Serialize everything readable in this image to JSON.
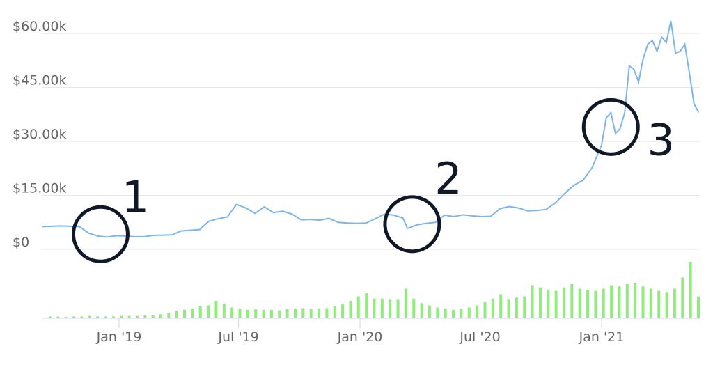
{
  "chart_data": {
    "type": "line",
    "title": "",
    "xlabel": "",
    "ylabel": "",
    "ylim": [
      0,
      60000
    ],
    "y_ticks": [
      {
        "value": 0,
        "label": "$0"
      },
      {
        "value": 15000,
        "label": "$15.00k"
      },
      {
        "value": 30000,
        "label": "$30.00k"
      },
      {
        "value": 45000,
        "label": "$45.00k"
      },
      {
        "value": 60000,
        "label": "$60.00k"
      }
    ],
    "x_ticks": [
      {
        "date": "2019-01-01",
        "label": "Jan '19"
      },
      {
        "date": "2019-07-01",
        "label": "Jul '19"
      },
      {
        "date": "2020-01-01",
        "label": "Jan '20"
      },
      {
        "date": "2020-07-01",
        "label": "Jul '20"
      },
      {
        "date": "2021-01-01",
        "label": "Jan '21"
      }
    ],
    "grid": true,
    "colors": {
      "price_line": "#7cb5ec",
      "volume_bars": "#90ed7d",
      "annotation": "#111827",
      "grid": "#e6e6e6"
    },
    "series": [
      {
        "type": "line",
        "x": [
          "2018-09-07",
          "2018-09-21",
          "2018-10-05",
          "2018-10-19",
          "2018-11-02",
          "2018-11-16",
          "2018-11-30",
          "2018-12-14",
          "2018-12-28",
          "2019-01-11",
          "2019-01-25",
          "2019-02-08",
          "2019-02-22",
          "2019-03-08",
          "2019-03-22",
          "2019-04-05",
          "2019-04-19",
          "2019-05-03",
          "2019-05-17",
          "2019-05-31",
          "2019-06-14",
          "2019-06-28",
          "2019-07-12",
          "2019-07-26",
          "2019-08-09",
          "2019-08-23",
          "2019-09-06",
          "2019-09-20",
          "2019-10-04",
          "2019-10-18",
          "2019-11-01",
          "2019-11-15",
          "2019-11-29",
          "2019-12-13",
          "2019-12-27",
          "2020-01-10",
          "2020-01-24",
          "2020-02-07",
          "2020-02-21",
          "2020-03-06",
          "2020-03-13",
          "2020-03-27",
          "2020-04-10",
          "2020-04-24",
          "2020-05-08",
          "2020-05-22",
          "2020-06-05",
          "2020-06-19",
          "2020-07-03",
          "2020-07-17",
          "2020-07-31",
          "2020-08-14",
          "2020-08-28",
          "2020-09-11",
          "2020-09-25",
          "2020-10-09",
          "2020-10-23",
          "2020-11-06",
          "2020-11-20",
          "2020-12-04",
          "2020-12-18",
          "2021-01-01",
          "2021-01-08",
          "2021-01-15",
          "2021-01-22",
          "2021-01-29",
          "2021-02-05",
          "2021-02-12",
          "2021-02-19",
          "2021-02-26",
          "2021-03-05",
          "2021-03-12",
          "2021-03-19",
          "2021-03-26",
          "2021-04-02",
          "2021-04-09",
          "2021-04-16",
          "2021-04-23",
          "2021-04-30",
          "2021-05-07",
          "2021-05-14",
          "2021-05-21",
          "2021-05-28"
        ],
        "y": [
          6300,
          6400,
          6500,
          6400,
          6300,
          4500,
          3700,
          3400,
          3800,
          3700,
          3500,
          3500,
          3900,
          3950,
          4000,
          5100,
          5300,
          5500,
          7800,
          8500,
          9000,
          12500,
          11500,
          10000,
          11800,
          10200,
          10600,
          9800,
          8200,
          8300,
          8100,
          8600,
          7500,
          7300,
          7200,
          7300,
          8500,
          9800,
          9500,
          8700,
          5800,
          6800,
          7200,
          7500,
          9500,
          9100,
          9600,
          9300,
          9100,
          9200,
          11300,
          11900,
          11500,
          10700,
          10800,
          11100,
          12900,
          15500,
          17800,
          19200,
          22800,
          29000,
          36500,
          38000,
          32200,
          33500,
          38000,
          51000,
          50000,
          46500,
          53000,
          57000,
          58000,
          55000,
          59000,
          57500,
          63500,
          54500,
          55000,
          57000,
          49000,
          40500,
          38000
        ]
      },
      {
        "type": "bar",
        "name": "volume",
        "values_relative": [
          0.02,
          0.02,
          0.01,
          0.02,
          0.02,
          0.03,
          0.02,
          0.02,
          0.02,
          0.03,
          0.03,
          0.03,
          0.04,
          0.05,
          0.06,
          0.08,
          0.12,
          0.14,
          0.16,
          0.2,
          0.22,
          0.3,
          0.25,
          0.18,
          0.16,
          0.14,
          0.15,
          0.14,
          0.14,
          0.13,
          0.15,
          0.16,
          0.17,
          0.15,
          0.16,
          0.17,
          0.2,
          0.24,
          0.3,
          0.38,
          0.44,
          0.34,
          0.34,
          0.32,
          0.32,
          0.52,
          0.34,
          0.26,
          0.22,
          0.18,
          0.16,
          0.14,
          0.16,
          0.18,
          0.22,
          0.28,
          0.34,
          0.42,
          0.32,
          0.36,
          0.38,
          0.58,
          0.54,
          0.5,
          0.48,
          0.54,
          0.6,
          0.52,
          0.5,
          0.48,
          0.52,
          0.58,
          0.56,
          0.6,
          0.62,
          0.56,
          0.52,
          0.48,
          0.46,
          0.52,
          0.72,
          1.0,
          0.38
        ]
      }
    ],
    "annotations": [
      {
        "label": "1",
        "date": "2018-12-04",
        "value": 4200
      },
      {
        "label": "2",
        "date": "2020-03-20",
        "value": 7000
      },
      {
        "label": "3",
        "date": "2021-01-15",
        "value": 34000
      }
    ]
  }
}
